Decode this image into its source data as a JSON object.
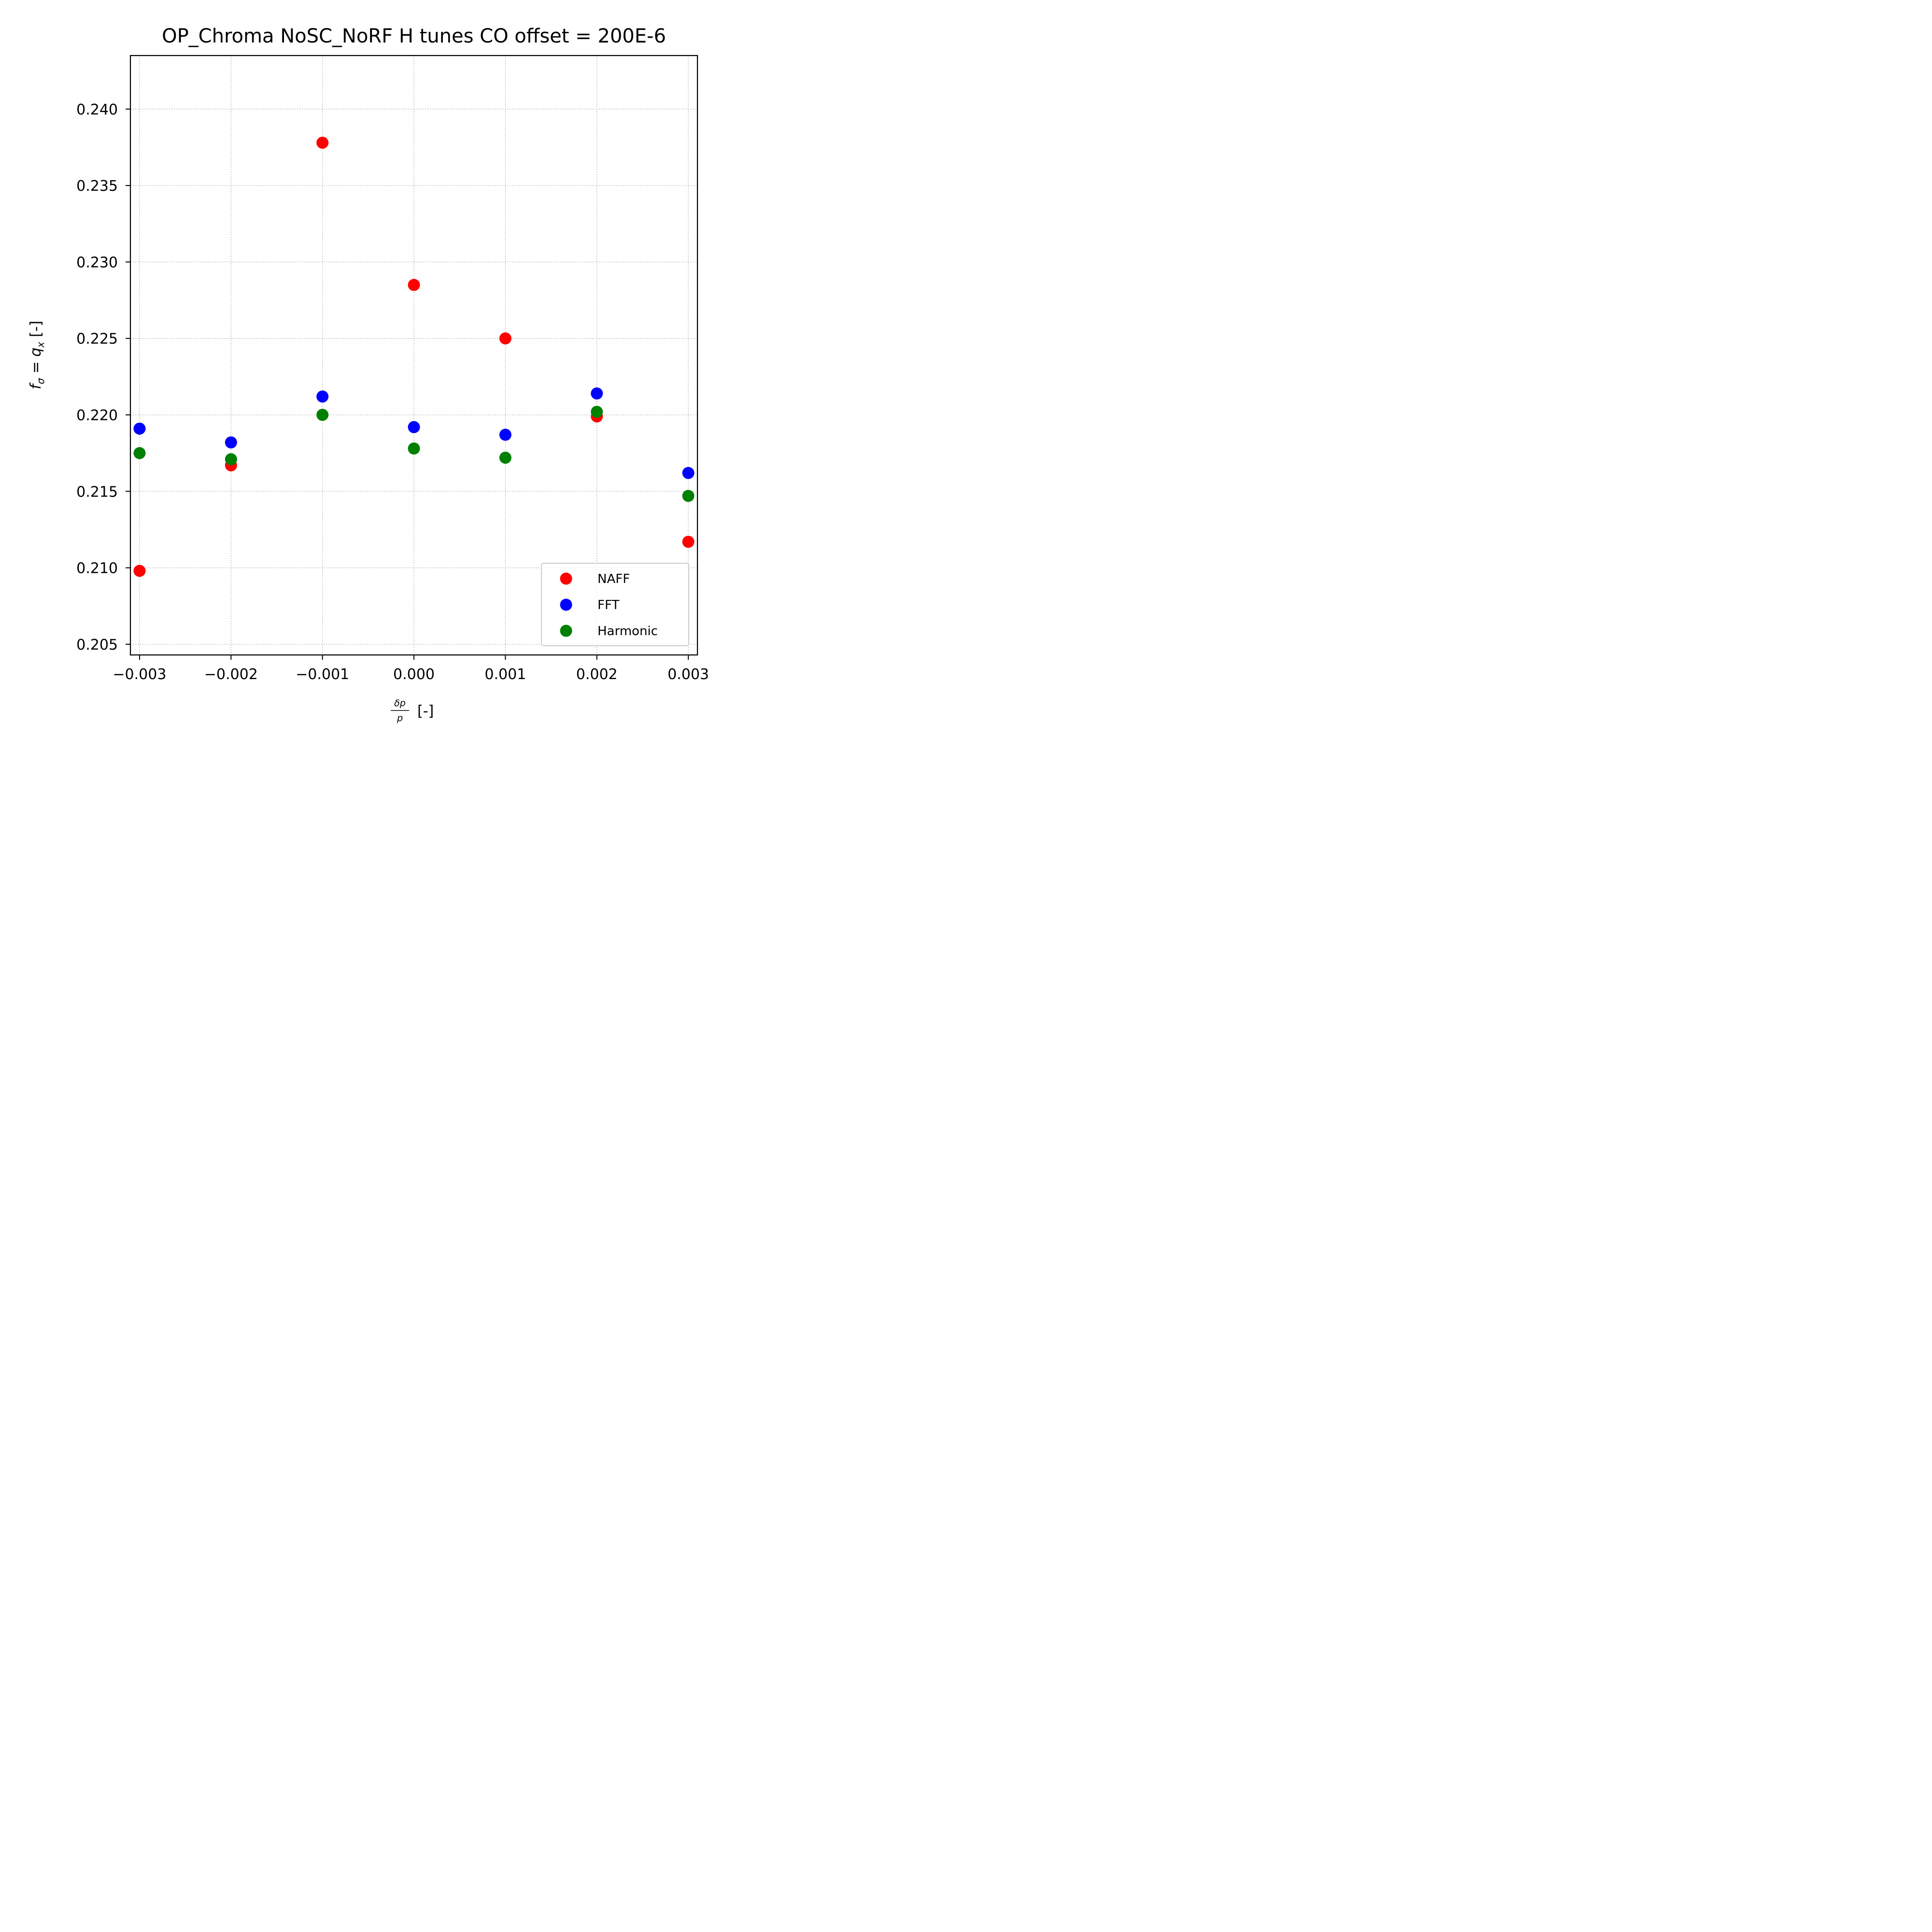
{
  "chart_data": {
    "type": "scatter",
    "title": "OP_Chroma NoSC_NoRF H tunes CO offset = 200E-6",
    "xlabel": {
      "numerator": "δp",
      "denominator": "p",
      "suffix": "[-]"
    },
    "ylabel": {
      "f": "f",
      "sub_sigma": "σ",
      "eq": " = ",
      "q": "q",
      "sub_x": "x",
      "suffix": " [-]"
    },
    "x": [
      -0.003,
      -0.002,
      -0.001,
      0.0,
      0.001,
      0.002,
      0.003
    ],
    "xlim": [
      -0.0031,
      0.0031
    ],
    "ylim": [
      0.2043,
      0.2435
    ],
    "xticks": [
      -0.003,
      -0.002,
      -0.001,
      0.0,
      0.001,
      0.002,
      0.003
    ],
    "xtick_labels": [
      "−0.003",
      "−0.002",
      "−0.001",
      "0.000",
      "0.001",
      "0.002",
      "0.003"
    ],
    "yticks": [
      0.205,
      0.21,
      0.215,
      0.22,
      0.225,
      0.23,
      0.235,
      0.24
    ],
    "ytick_labels": [
      "0.205",
      "0.210",
      "0.215",
      "0.220",
      "0.225",
      "0.230",
      "0.235",
      "0.240"
    ],
    "grid": true,
    "legend_position": "lower-right",
    "series": [
      {
        "name": "NAFF",
        "color": "#ff0000",
        "values": [
          0.2098,
          0.2167,
          0.2378,
          0.2285,
          0.225,
          0.2199,
          0.2117
        ]
      },
      {
        "name": "FFT",
        "color": "#0000ff",
        "values": [
          0.2191,
          0.2182,
          0.2212,
          0.2192,
          0.2187,
          0.2214,
          0.2162
        ]
      },
      {
        "name": "Harmonic",
        "color": "#008000",
        "values": [
          0.2175,
          0.2171,
          0.22,
          0.2178,
          0.2172,
          0.2202,
          0.2147
        ]
      }
    ]
  }
}
